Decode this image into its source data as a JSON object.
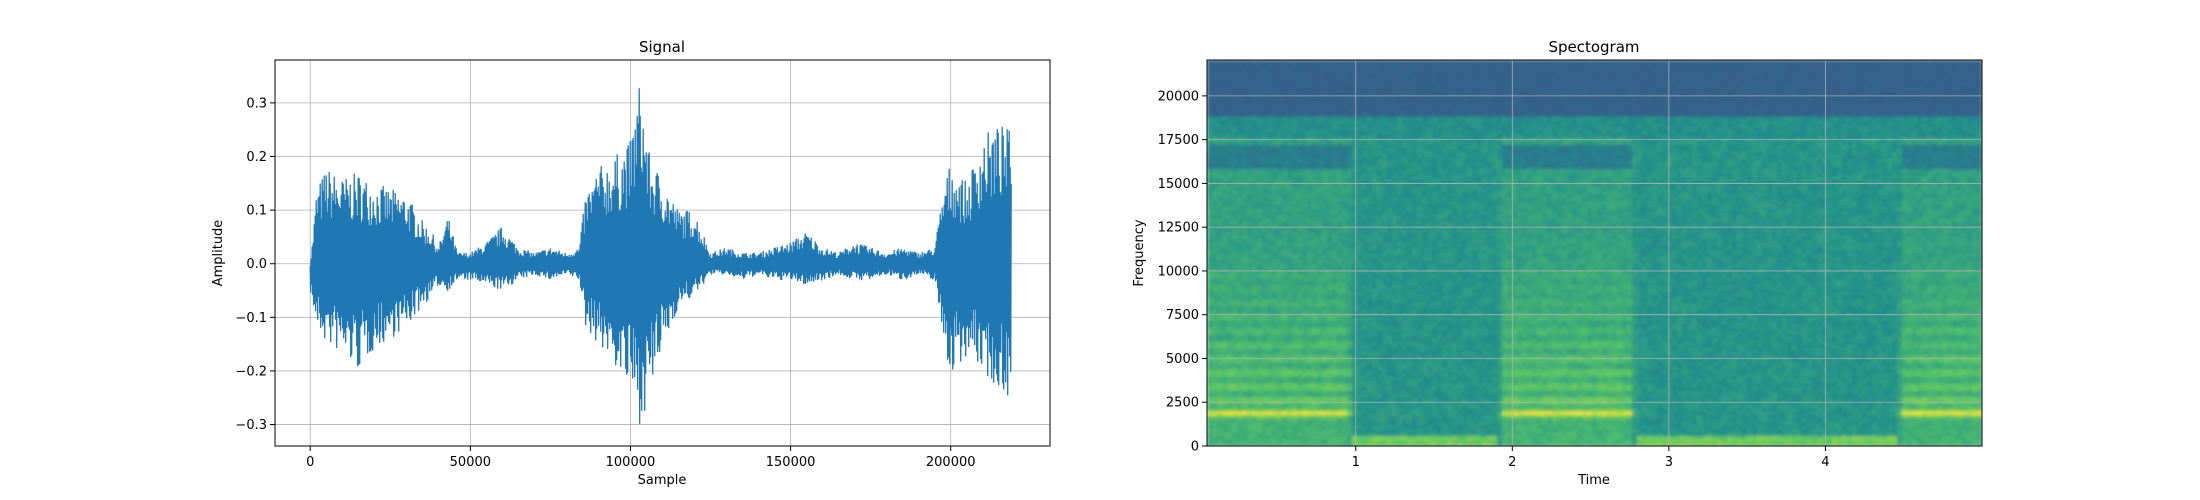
{
  "chart_data": [
    {
      "type": "line",
      "title": "Signal",
      "xlabel": "Sample",
      "ylabel": "Amplitude",
      "xlim": [
        -11000,
        231000
      ],
      "ylim": [
        -0.34,
        0.38
      ],
      "xticks": [
        0,
        50000,
        100000,
        150000,
        200000
      ],
      "xtick_labels": [
        "0",
        "50000",
        "100000",
        "150000",
        "200000"
      ],
      "yticks": [
        -0.3,
        -0.2,
        -0.1,
        0.0,
        0.1,
        0.2,
        0.3
      ],
      "ytick_labels": [
        "−0.3",
        "−0.2",
        "−0.1",
        "0.0",
        "0.1",
        "0.2",
        "0.3"
      ],
      "grid": true,
      "color": "#1f77b4",
      "series": [
        {
          "x": [
            0,
            2000,
            5000,
            10000,
            15000,
            20000,
            25000,
            30000,
            35000,
            38000,
            40000,
            43000,
            46000,
            50000,
            55000,
            60000,
            65000,
            70000,
            75000,
            80000,
            84000,
            86000,
            90000,
            95000,
            100000,
            103000,
            106000,
            110000,
            115000,
            120000,
            125000,
            130000,
            135000,
            140000,
            145000,
            150000,
            155000,
            160000,
            165000,
            170000,
            175000,
            180000,
            185000,
            190000,
            195000,
            198000,
            200000,
            205000,
            210000,
            215000,
            219000
          ],
          "upper": [
            -0.01,
            0.14,
            0.18,
            0.16,
            0.17,
            0.15,
            0.14,
            0.13,
            0.08,
            0.06,
            0.03,
            0.09,
            0.02,
            0.02,
            0.04,
            0.07,
            0.03,
            0.02,
            0.03,
            0.02,
            0.03,
            0.13,
            0.18,
            0.2,
            0.23,
            0.35,
            0.2,
            0.16,
            0.1,
            0.1,
            0.02,
            0.03,
            0.02,
            0.02,
            0.03,
            0.04,
            0.06,
            0.03,
            0.02,
            0.04,
            0.03,
            0.02,
            0.03,
            0.02,
            0.03,
            0.15,
            0.19,
            0.15,
            0.24,
            0.26,
            0.25
          ],
          "lower": [
            -0.05,
            -0.12,
            -0.15,
            -0.17,
            -0.2,
            -0.16,
            -0.14,
            -0.12,
            -0.08,
            -0.06,
            -0.04,
            -0.05,
            -0.03,
            -0.03,
            -0.04,
            -0.05,
            -0.03,
            -0.02,
            -0.03,
            -0.02,
            -0.03,
            -0.12,
            -0.15,
            -0.19,
            -0.24,
            -0.3,
            -0.25,
            -0.16,
            -0.08,
            -0.06,
            -0.02,
            -0.02,
            -0.03,
            -0.02,
            -0.03,
            -0.03,
            -0.04,
            -0.03,
            -0.02,
            -0.03,
            -0.03,
            -0.02,
            -0.03,
            -0.02,
            -0.03,
            -0.15,
            -0.21,
            -0.17,
            -0.2,
            -0.24,
            -0.25
          ]
        }
      ]
    },
    {
      "type": "heatmap",
      "title": "Spectogram",
      "xlabel": "Time",
      "ylabel": "Frequency",
      "xlim": [
        0.05,
        5.0
      ],
      "ylim": [
        0,
        22050
      ],
      "xticks": [
        1,
        2,
        3,
        4
      ],
      "xtick_labels": [
        "1",
        "2",
        "3",
        "4"
      ],
      "yticks": [
        0,
        2500,
        5000,
        7500,
        10000,
        12500,
        15000,
        17500,
        20000
      ],
      "ytick_labels": [
        "0",
        "2500",
        "5000",
        "7500",
        "10000",
        "12500",
        "15000",
        "17500",
        "20000"
      ],
      "grid": true,
      "colormap": "viridis",
      "active_segments": [
        [
          0.05,
          0.95,
          1.0
        ],
        [
          1.95,
          2.75,
          1.0
        ],
        [
          4.5,
          5.0,
          1.0
        ]
      ],
      "harmonic_bands": [
        1900,
        2600,
        3400,
        4200,
        5000,
        5800,
        6600,
        7400,
        8200,
        9000,
        9800
      ]
    }
  ]
}
